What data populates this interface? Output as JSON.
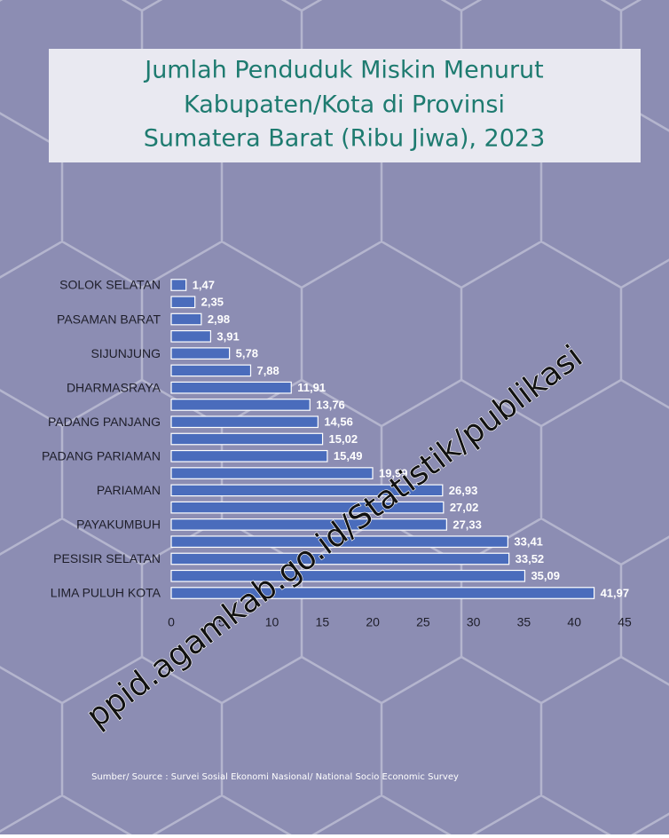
{
  "chart_data": {
    "type": "bar",
    "orientation": "horizontal",
    "title": [
      "Jumlah Penduduk Miskin Menurut",
      "Kabupaten/Kota di Provinsi",
      "Sumatera Barat (Ribu Jiwa), 2023"
    ],
    "categories": [
      "SOLOK SELATAN",
      null,
      "PASAMAN BARAT",
      null,
      "SIJUNJUNG",
      null,
      "DHARMASRAYA",
      null,
      "PADANG PANJANG",
      null,
      "PADANG PARIAMAN",
      null,
      "PARIAMAN",
      null,
      "PAYAKUMBUH",
      null,
      "PESISIR SELATAN",
      null,
      "LIMA PULUH KOTA"
    ],
    "values": [
      1.47,
      2.35,
      2.98,
      3.91,
      5.78,
      7.88,
      11.91,
      13.76,
      14.56,
      15.02,
      15.49,
      19.99,
      26.93,
      27.02,
      27.33,
      33.41,
      33.52,
      35.09,
      41.97
    ],
    "value_labels": [
      "1,47",
      "2,35",
      "2,98",
      "3,91",
      "5,78",
      "7,88",
      "11,91",
      "13,76",
      "14,56",
      "15,02",
      "15,49",
      "19,99",
      "26,93",
      "27,02",
      "27,33",
      "33,41",
      "33,52",
      "35,09",
      "41,97"
    ],
    "color": "#4a6cbc",
    "xlim": [
      0,
      45
    ],
    "xticks": [
      0,
      5,
      10,
      15,
      20,
      25,
      30,
      35,
      40,
      45
    ],
    "grid": false,
    "source": "Sumber/ Source : Survei Sosial Ekonomi Nasional/ National Socio Economic Survey",
    "watermark": "ppid.agamkab.go.id/Statistik/publikasi"
  }
}
